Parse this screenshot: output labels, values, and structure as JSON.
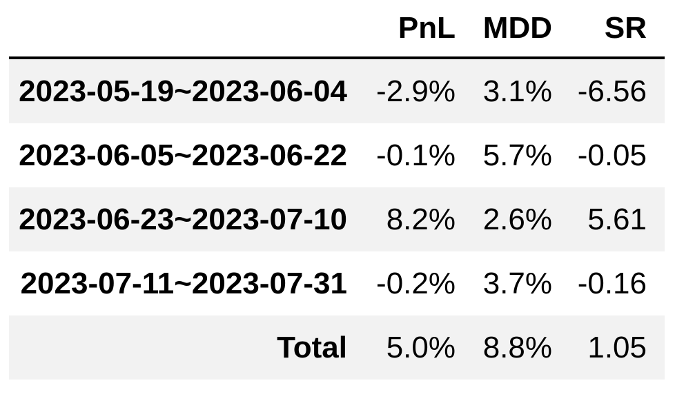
{
  "chart_data": {
    "type": "table",
    "title": "",
    "columns": [
      "",
      "PnL",
      "MDD",
      "SR"
    ],
    "rows": [
      [
        "2023-05-19~2023-06-04",
        "-2.9%",
        "3.1%",
        "-6.56"
      ],
      [
        "2023-06-05~2023-06-22",
        "-0.1%",
        "5.7%",
        "-0.05"
      ],
      [
        "2023-06-23~2023-07-10",
        "8.2%",
        "2.6%",
        "5.61"
      ],
      [
        "2023-07-11~2023-07-31",
        "-0.2%",
        "3.7%",
        "-0.16"
      ],
      [
        "Total",
        "5.0%",
        "8.8%",
        "1.05"
      ]
    ],
    "layout_hints": {
      "zebra_striping": true,
      "stripe_rows": "odd",
      "alignment": "right",
      "header_rule": "bottom"
    }
  },
  "colors": {
    "text": "#000000",
    "stripe": "#f2f2f2",
    "row_alt": "#ffffff",
    "header_border": "#000000",
    "background": "#ffffff"
  }
}
